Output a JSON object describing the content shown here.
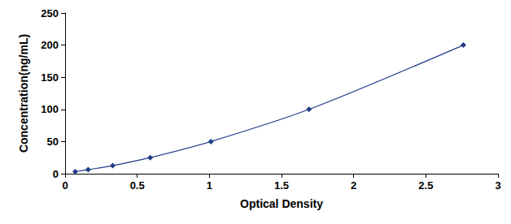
{
  "chart_data": {
    "type": "line",
    "x_label": "Optical Density",
    "y_label": "Concentration(ng/mL)",
    "x": [
      0.07,
      0.16,
      0.33,
      0.59,
      1.01,
      1.69,
      2.76
    ],
    "values": [
      3.12,
      6.25,
      12.5,
      25,
      50,
      100,
      200
    ],
    "color": "#1f3c88",
    "marker": "diamond",
    "line_style": "solid",
    "xlim": [
      0,
      3
    ],
    "xticks": [
      0,
      0.5,
      1,
      1.5,
      2,
      2.5,
      3
    ],
    "ylim": [
      0,
      250
    ],
    "yticks": [
      0,
      50,
      100,
      150,
      200,
      250
    ],
    "grid": false
  }
}
